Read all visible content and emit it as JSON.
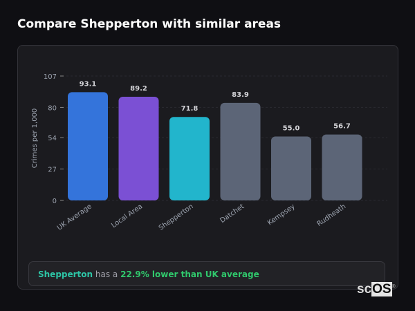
{
  "header": {
    "title": "Compare Shepperton with similar areas"
  },
  "chart_data": {
    "type": "bar",
    "title": "",
    "xlabel": "",
    "ylabel": "Crimes per 1,000",
    "ylim": [
      0,
      107
    ],
    "yticks": [
      0,
      27,
      54,
      80,
      107
    ],
    "grid": true,
    "categories": [
      "UK Average",
      "Local Area",
      "Shepperton",
      "Datchet",
      "Kempsey",
      "Rudheath"
    ],
    "values": [
      93.1,
      89.2,
      71.8,
      83.9,
      55.0,
      56.7
    ],
    "value_labels": [
      "93.1",
      "89.2",
      "71.8",
      "83.9",
      "55.0",
      "56.7"
    ],
    "colors": [
      "#3474db",
      "#7b50d4",
      "#22b5cc",
      "#5c6577",
      "#5c6577",
      "#5c6577"
    ]
  },
  "summary": {
    "area": "Shepperton",
    "middle": " has a ",
    "comparison": "22.9% lower than UK average"
  },
  "logo": {
    "text_a": "sc",
    "text_b": "OS",
    "mark": "®"
  }
}
